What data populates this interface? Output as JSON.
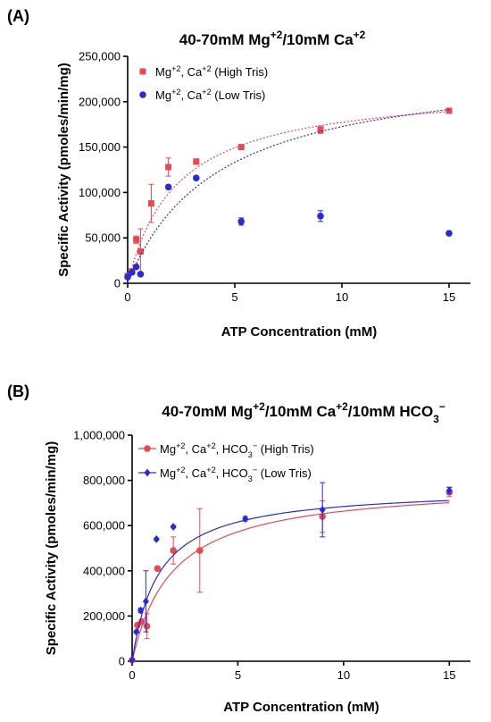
{
  "chart_data": [
    {
      "panel": "(A)",
      "type": "scatter",
      "title_segments": [
        {
          "text": "40-70mM Mg",
          "sup": false
        },
        {
          "text": "+2",
          "sup": true
        },
        {
          "text": "/10mM Ca",
          "sup": false
        },
        {
          "text": "+2",
          "sup": true
        }
      ],
      "xlabel": "ATP Concentration (mM)",
      "ylabel": "Specific Activity (pmoles/min/mg)",
      "xlim": [
        0,
        16
      ],
      "ylim": [
        0,
        250000
      ],
      "xticks": [
        0,
        5,
        10,
        15
      ],
      "xtick_labels": [
        "0",
        "5",
        "10",
        "15"
      ],
      "yticks": [
        0,
        50000,
        100000,
        150000,
        200000,
        250000
      ],
      "ytick_labels": [
        "0",
        "50,000",
        "100,000",
        "150,000",
        "200,000",
        "250,000"
      ],
      "legend_position": "top-left",
      "series": [
        {
          "legend_segments": [
            {
              "text": "Mg",
              "sup": false
            },
            {
              "text": "+2",
              "sup": true
            },
            {
              "text": ", Ca",
              "sup": false
            },
            {
              "text": "+2",
              "sup": true
            },
            {
              "text": " (High Tris)",
              "sup": false
            }
          ],
          "color": "#e8484e",
          "marker": "square",
          "x": [
            0,
            0.2,
            0.4,
            0.6,
            1.1,
            1.9,
            3.2,
            5.3,
            9.0,
            15.0
          ],
          "y": [
            8000,
            13000,
            48000,
            35000,
            88000,
            128000,
            134000,
            150000,
            169000,
            190000
          ],
          "err": [
            2000,
            3000,
            4000,
            25000,
            21000,
            10000,
            3000,
            2000,
            4000,
            2000
          ],
          "fit": {
            "vmax": 218000,
            "km": 2.3,
            "style": "dotted"
          }
        },
        {
          "legend_segments": [
            {
              "text": "Mg",
              "sup": false
            },
            {
              "text": "+2",
              "sup": true
            },
            {
              "text": ", Ca",
              "sup": false
            },
            {
              "text": "+2",
              "sup": true
            },
            {
              "text": " (Low Tris)",
              "sup": false
            }
          ],
          "color": "#2a2ad4",
          "marker": "circle",
          "x": [
            0,
            0.2,
            0.4,
            0.6,
            1.9,
            3.2,
            5.3,
            9.0,
            15.0
          ],
          "y": [
            7000,
            12000,
            18000,
            10000,
            106000,
            116000,
            68000,
            74000,
            55000
          ],
          "err": [
            1000,
            1000,
            2000,
            1000,
            2000,
            2000,
            4000,
            6000,
            2000
          ],
          "fit": {
            "vmax": 245000,
            "km": 4.2,
            "style": "dotted"
          }
        }
      ]
    },
    {
      "panel": "(B)",
      "type": "scatter",
      "title_segments": [
        {
          "text": "40-70mM Mg",
          "sup": false
        },
        {
          "text": "+2",
          "sup": true
        },
        {
          "text": "/10mM Ca",
          "sup": false
        },
        {
          "text": "+2",
          "sup": true
        },
        {
          "text": "/10mM HCO",
          "sup": false
        },
        {
          "text": "3",
          "sub": true
        },
        {
          "text": "−",
          "sup": true
        }
      ],
      "xlabel": "ATP Concentration (mM)",
      "ylabel": "Specific Activity (pmoles/min/mg)",
      "xlim": [
        0,
        16
      ],
      "ylim": [
        0,
        1000000
      ],
      "xticks": [
        0,
        5,
        10,
        15
      ],
      "xtick_labels": [
        "0",
        "5",
        "10",
        "15"
      ],
      "yticks": [
        0,
        200000,
        400000,
        600000,
        800000,
        1000000
      ],
      "ytick_labels": [
        "0",
        "200,000",
        "400,000",
        "600,000",
        "800,000",
        "1,000,000"
      ],
      "legend_position": "top-left",
      "series": [
        {
          "legend_segments": [
            {
              "text": "Mg",
              "sup": false
            },
            {
              "text": "+2",
              "sup": true
            },
            {
              "text": ", Ca",
              "sup": false
            },
            {
              "text": "+2",
              "sup": true
            },
            {
              "text": ", HCO",
              "sup": false
            },
            {
              "text": "3",
              "sub": true
            },
            {
              "text": "−",
              "sup": true
            },
            {
              "text": " (High Tris)",
              "sup": false
            }
          ],
          "color": "#e8484e",
          "marker": "circle",
          "x": [
            0,
            0.25,
            0.45,
            0.7,
            1.2,
            1.95,
            3.2,
            9.0,
            15.0
          ],
          "y": [
            5000,
            160000,
            175000,
            155000,
            410000,
            490000,
            490000,
            640000,
            748000
          ],
          "err": [
            2000,
            5000,
            10000,
            55000,
            10000,
            60000,
            185000,
            70000,
            20000
          ],
          "fit": {
            "vmax": 790000,
            "km": 1.9,
            "style": "solid"
          }
        },
        {
          "legend_segments": [
            {
              "text": "Mg",
              "sup": false
            },
            {
              "text": "+2",
              "sup": true
            },
            {
              "text": ", Ca",
              "sup": false
            },
            {
              "text": "+2",
              "sup": true
            },
            {
              "text": ", HCO",
              "sup": false
            },
            {
              "text": "3",
              "sub": true
            },
            {
              "text": "−",
              "sup": true
            },
            {
              "text": " (Low Tris)",
              "sup": false
            }
          ],
          "color": "#2a2ad4",
          "marker": "diamond",
          "x": [
            0,
            0.2,
            0.4,
            0.65,
            1.15,
            1.95,
            5.35,
            9.0,
            15.0
          ],
          "y": [
            5000,
            130000,
            225000,
            265000,
            540000,
            595000,
            630000,
            670000,
            755000
          ],
          "err": [
            2000,
            5000,
            10000,
            135000,
            5000,
            5000,
            10000,
            120000,
            15000
          ],
          "fit": {
            "vmax": 770000,
            "km": 1.25,
            "style": "solid"
          }
        }
      ]
    }
  ]
}
